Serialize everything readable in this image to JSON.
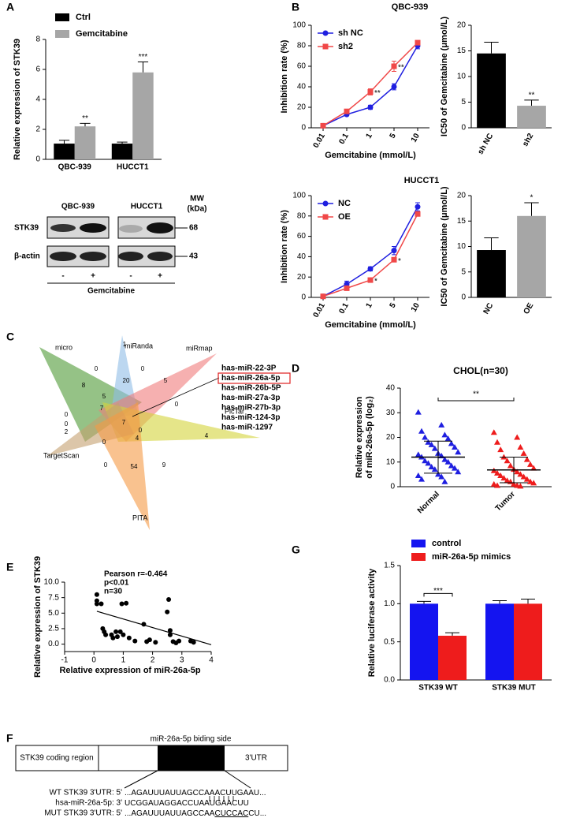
{
  "panel_labels": [
    "A",
    "B",
    "C",
    "D",
    "E",
    "F",
    "G"
  ],
  "chart_data": [
    {
      "type": "bar",
      "ylabel": "Relative expression of STK39",
      "categories": [
        "QBC-939",
        "HUCCT1"
      ],
      "series": [
        {
          "name": "Ctrl",
          "color": "#000000",
          "values": [
            1.05,
            1.05
          ],
          "errors": [
            0.22,
            0.1
          ]
        },
        {
          "name": "Gemcitabine",
          "color": "#a6a6a6",
          "values": [
            2.2,
            5.8
          ],
          "errors": [
            0.2,
            0.7
          ]
        }
      ],
      "significance": [
        "**",
        "***"
      ],
      "ylim": [
        0,
        8
      ],
      "yticks": [
        0,
        2,
        4,
        6,
        8
      ],
      "legend": "above"
    },
    {
      "type": "line",
      "title": "QBC-939",
      "xlabel": "Gemcitabine (mmol/L)",
      "ylabel": "Inhibition rate (%)",
      "categories": [
        "0.01",
        "0.1",
        "1",
        "5",
        "10"
      ],
      "series": [
        {
          "name": "sh NC",
          "color": "#1f1fe0",
          "marker": "circle",
          "values": [
            2,
            13,
            20,
            40,
            80
          ],
          "errors": [
            1,
            1,
            2,
            3,
            3
          ]
        },
        {
          "name": "sh2",
          "color": "#f04848",
          "marker": "square",
          "values": [
            2,
            16,
            35,
            60,
            83
          ],
          "errors": [
            1,
            1,
            3,
            5,
            2
          ]
        }
      ],
      "significance": [
        null,
        null,
        "**",
        "**",
        null
      ],
      "ylim": [
        0,
        100
      ],
      "yticks": [
        0,
        20,
        40,
        60,
        80,
        100
      ],
      "legend": "upper left"
    },
    {
      "type": "bar",
      "ylabel": "IC50 of Gemcitabine (μmol/L)",
      "categories": [
        "sh NC",
        "sh2"
      ],
      "values": [
        14.5,
        4.3
      ],
      "errors": [
        2.2,
        1.1
      ],
      "colors": [
        "#000000",
        "#a6a6a6"
      ],
      "significance": [
        null,
        "**"
      ],
      "ylim": [
        0,
        20
      ],
      "yticks": [
        0,
        5,
        10,
        15,
        20
      ]
    },
    {
      "type": "line",
      "title": "HUCCT1",
      "xlabel": "Gemcitabine (mmol/L)",
      "ylabel": "Inhibition rate (%)",
      "categories": [
        "0.01",
        "0.1",
        "1",
        "5",
        "10"
      ],
      "series": [
        {
          "name": "NC",
          "color": "#1f1fe0",
          "marker": "circle",
          "values": [
            1,
            13,
            28,
            46,
            89
          ],
          "errors": [
            1,
            3,
            2,
            4,
            4
          ]
        },
        {
          "name": "OE",
          "color": "#f04848",
          "marker": "square",
          "values": [
            1,
            9,
            17,
            37,
            82
          ],
          "errors": [
            1,
            1,
            1,
            2,
            2
          ]
        }
      ],
      "significance": [
        null,
        null,
        "*",
        "*",
        null
      ],
      "ylim": [
        0,
        100
      ],
      "yticks": [
        0,
        20,
        40,
        60,
        80,
        100
      ],
      "legend": "upper left"
    },
    {
      "type": "bar",
      "ylabel": "IC50 of Gemcitabine (μmol/L)",
      "categories": [
        "NC",
        "OE"
      ],
      "values": [
        9.3,
        16
      ],
      "errors": [
        2.4,
        2.6
      ],
      "colors": [
        "#000000",
        "#a6a6a6"
      ],
      "significance": [
        null,
        "*"
      ],
      "ylim": [
        0,
        20
      ],
      "yticks": [
        0,
        5,
        10,
        15,
        20
      ]
    },
    {
      "type": "strip",
      "title": "CHOL(n=30)",
      "ylabel": [
        "Relative expression",
        "of miR-26a-5p (log₂)"
      ],
      "categories": [
        "Normal",
        "Tumor"
      ],
      "series": [
        {
          "color": "#1f1fe0",
          "marker": "triangle",
          "mean": 12,
          "sd": 6.5,
          "values": [
            30.2,
            25,
            22.5,
            21,
            20,
            19.5,
            18,
            17.5,
            17,
            16,
            15.5,
            14,
            13.5,
            13,
            12.5,
            12,
            11,
            10.5,
            10,
            9.5,
            8.5,
            8,
            7.5,
            7,
            6,
            5,
            4.5,
            4,
            3,
            2
          ]
        },
        {
          "color": "#ee1c1c",
          "marker": "triangle",
          "mean": 6.8,
          "sd": 5.2,
          "values": [
            22,
            20,
            18,
            16,
            15,
            13.5,
            12,
            11,
            10.5,
            9,
            8.5,
            7.5,
            7,
            6.5,
            6,
            5.5,
            5,
            4.5,
            4,
            3.5,
            3,
            2.5,
            2,
            2,
            1.5,
            1,
            1,
            0.5,
            0.5,
            0.2
          ]
        }
      ],
      "significance": "**",
      "ylim": [
        0,
        40
      ],
      "yticks": [
        0,
        10,
        20,
        30,
        40
      ]
    },
    {
      "type": "scatter",
      "xlabel": "Relative expression of miR-26a-5p",
      "ylabel": "Relative expression of STK39",
      "x": [
        0.1,
        0.1,
        0.1,
        0.25,
        0.3,
        0.35,
        0.4,
        0.6,
        0.65,
        0.75,
        0.8,
        0.9,
        0.95,
        1.0,
        1.1,
        1.2,
        1.4,
        1.7,
        1.8,
        1.9,
        2.1,
        2.5,
        2.55,
        2.6,
        2.6,
        2.7,
        2.8,
        2.9,
        3.3,
        3.4
      ],
      "y": [
        8,
        7,
        6.5,
        6.5,
        2.5,
        2,
        1.5,
        1.5,
        1,
        2,
        1.2,
        2,
        6.5,
        1.5,
        6.6,
        1,
        0.5,
        3.2,
        0.4,
        0.7,
        0.3,
        5.2,
        7.2,
        2.2,
        1.5,
        0.4,
        0.2,
        0.5,
        0.5,
        0.3
      ],
      "fit": {
        "x": [
          0.1,
          4
        ],
        "y": [
          5.3,
          -0.1
        ]
      },
      "annotations": [
        "Pearson r=-0.464",
        "p<0.01",
        "n=30"
      ],
      "xlim": [
        -1,
        4
      ],
      "xticks": [
        -1,
        0,
        1,
        2,
        3,
        4
      ],
      "ylim": [
        -1.2,
        10
      ],
      "yticks": [
        {
          "value": 0,
          "label": "0.0"
        },
        2.5,
        {
          "value": 5,
          "label": "5.0"
        },
        7.5,
        {
          "value": 10,
          "label": "10.0"
        }
      ]
    },
    {
      "type": "bar",
      "ylabel": "Relative luciferase activity",
      "categories": [
        "STK39 WT",
        "STK39 MUT"
      ],
      "series": [
        {
          "name": "control",
          "color": "#1414f0",
          "values": [
            1.0,
            1.0
          ],
          "errors": [
            0.03,
            0.04
          ]
        },
        {
          "name": "miR-26a-5p mimics",
          "color": "#ee1c1c",
          "values": [
            0.58,
            1.0
          ],
          "errors": [
            0.04,
            0.06
          ]
        }
      ],
      "significance": [
        "***",
        null
      ],
      "bracket": true,
      "ylim": [
        0,
        1.5
      ],
      "yticks": [
        {
          "value": 0,
          "label": "0.0"
        },
        0.5,
        {
          "value": 1,
          "label": "1.0"
        },
        1.5
      ],
      "legend": "above"
    }
  ],
  "blot": {
    "cell_lines": [
      "QBC-939",
      "HUCCT1"
    ],
    "mw_header": [
      "MW",
      "(kDa)"
    ],
    "rows": [
      {
        "name": "STK39",
        "mw": 68
      },
      {
        "name": "β-actin",
        "mw": 43
      }
    ],
    "lanes": [
      "-",
      "+",
      "-",
      "+"
    ],
    "treatment": "Gemcitabine"
  },
  "venn": {
    "sets": [
      "micro",
      "miRanda",
      "miRmap",
      "PicTar",
      "TargetScan",
      "PITA"
    ],
    "set_colors": [
      "#4f9a35",
      "#8fbde6",
      "#f07c7c",
      "#d4d43a",
      "#c4a070",
      "#f59a45"
    ],
    "counts": [
      1,
      0,
      0,
      20,
      5,
      8,
      5,
      0,
      7,
      0,
      0,
      2,
      7,
      0,
      0,
      4,
      4,
      0,
      54,
      9
    ],
    "mirnas": [
      "has-miR-22-3P",
      "has-miR-26a-5p",
      "has-miR-26b-5P",
      "has-miR-27a-3p",
      "has-miR-27b-3p",
      "has-miR-124-3p",
      "has-miR-1297"
    ],
    "highlight": 1
  },
  "diagram": {
    "coding_region": "STK39 coding region",
    "binding_site": "miR-26a-5p biding side",
    "utr": "3'UTR",
    "sequences": [
      {
        "label": "WT STK39 3'UTR: 5'",
        "seq": [
          "...AGAUUUAUUAGCCAAACUUGAAU..."
        ]
      },
      {
        "label": "hsa-miR-26a-5p: 3'",
        "seq": [
          "UCGGAUAGGACCUAAUGAACUU"
        ]
      },
      {
        "label": "MUT STK39 3'UTR: 5'",
        "seq": [
          "...AGAUUUAUUAGCCAA",
          "CUCCAC",
          "CU..."
        ]
      }
    ]
  }
}
